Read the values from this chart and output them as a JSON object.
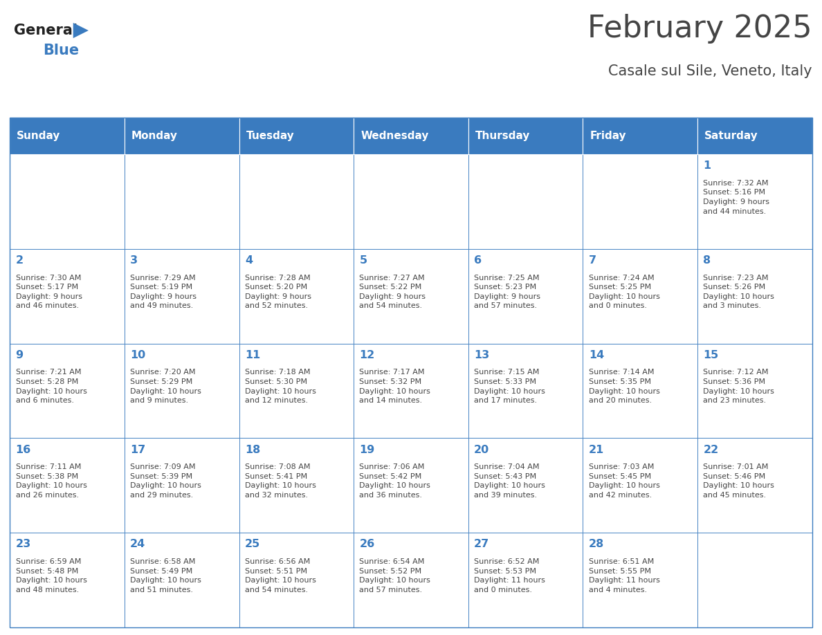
{
  "title": "February 2025",
  "subtitle": "Casale sul Sile, Veneto, Italy",
  "days_of_week": [
    "Sunday",
    "Monday",
    "Tuesday",
    "Wednesday",
    "Thursday",
    "Friday",
    "Saturday"
  ],
  "header_bg": "#3a7bbf",
  "header_text": "#ffffff",
  "cell_bg_white": "#ffffff",
  "cell_border": "#3a7bbf",
  "text_color": "#444444",
  "day_num_color": "#3a7bbf",
  "logo_general_color": "#222222",
  "logo_blue_color": "#3a7bbf",
  "weeks": [
    [
      {
        "day": null,
        "info": null
      },
      {
        "day": null,
        "info": null
      },
      {
        "day": null,
        "info": null
      },
      {
        "day": null,
        "info": null
      },
      {
        "day": null,
        "info": null
      },
      {
        "day": null,
        "info": null
      },
      {
        "day": 1,
        "info": "Sunrise: 7:32 AM\nSunset: 5:16 PM\nDaylight: 9 hours\nand 44 minutes."
      }
    ],
    [
      {
        "day": 2,
        "info": "Sunrise: 7:30 AM\nSunset: 5:17 PM\nDaylight: 9 hours\nand 46 minutes."
      },
      {
        "day": 3,
        "info": "Sunrise: 7:29 AM\nSunset: 5:19 PM\nDaylight: 9 hours\nand 49 minutes."
      },
      {
        "day": 4,
        "info": "Sunrise: 7:28 AM\nSunset: 5:20 PM\nDaylight: 9 hours\nand 52 minutes."
      },
      {
        "day": 5,
        "info": "Sunrise: 7:27 AM\nSunset: 5:22 PM\nDaylight: 9 hours\nand 54 minutes."
      },
      {
        "day": 6,
        "info": "Sunrise: 7:25 AM\nSunset: 5:23 PM\nDaylight: 9 hours\nand 57 minutes."
      },
      {
        "day": 7,
        "info": "Sunrise: 7:24 AM\nSunset: 5:25 PM\nDaylight: 10 hours\nand 0 minutes."
      },
      {
        "day": 8,
        "info": "Sunrise: 7:23 AM\nSunset: 5:26 PM\nDaylight: 10 hours\nand 3 minutes."
      }
    ],
    [
      {
        "day": 9,
        "info": "Sunrise: 7:21 AM\nSunset: 5:28 PM\nDaylight: 10 hours\nand 6 minutes."
      },
      {
        "day": 10,
        "info": "Sunrise: 7:20 AM\nSunset: 5:29 PM\nDaylight: 10 hours\nand 9 minutes."
      },
      {
        "day": 11,
        "info": "Sunrise: 7:18 AM\nSunset: 5:30 PM\nDaylight: 10 hours\nand 12 minutes."
      },
      {
        "day": 12,
        "info": "Sunrise: 7:17 AM\nSunset: 5:32 PM\nDaylight: 10 hours\nand 14 minutes."
      },
      {
        "day": 13,
        "info": "Sunrise: 7:15 AM\nSunset: 5:33 PM\nDaylight: 10 hours\nand 17 minutes."
      },
      {
        "day": 14,
        "info": "Sunrise: 7:14 AM\nSunset: 5:35 PM\nDaylight: 10 hours\nand 20 minutes."
      },
      {
        "day": 15,
        "info": "Sunrise: 7:12 AM\nSunset: 5:36 PM\nDaylight: 10 hours\nand 23 minutes."
      }
    ],
    [
      {
        "day": 16,
        "info": "Sunrise: 7:11 AM\nSunset: 5:38 PM\nDaylight: 10 hours\nand 26 minutes."
      },
      {
        "day": 17,
        "info": "Sunrise: 7:09 AM\nSunset: 5:39 PM\nDaylight: 10 hours\nand 29 minutes."
      },
      {
        "day": 18,
        "info": "Sunrise: 7:08 AM\nSunset: 5:41 PM\nDaylight: 10 hours\nand 32 minutes."
      },
      {
        "day": 19,
        "info": "Sunrise: 7:06 AM\nSunset: 5:42 PM\nDaylight: 10 hours\nand 36 minutes."
      },
      {
        "day": 20,
        "info": "Sunrise: 7:04 AM\nSunset: 5:43 PM\nDaylight: 10 hours\nand 39 minutes."
      },
      {
        "day": 21,
        "info": "Sunrise: 7:03 AM\nSunset: 5:45 PM\nDaylight: 10 hours\nand 42 minutes."
      },
      {
        "day": 22,
        "info": "Sunrise: 7:01 AM\nSunset: 5:46 PM\nDaylight: 10 hours\nand 45 minutes."
      }
    ],
    [
      {
        "day": 23,
        "info": "Sunrise: 6:59 AM\nSunset: 5:48 PM\nDaylight: 10 hours\nand 48 minutes."
      },
      {
        "day": 24,
        "info": "Sunrise: 6:58 AM\nSunset: 5:49 PM\nDaylight: 10 hours\nand 51 minutes."
      },
      {
        "day": 25,
        "info": "Sunrise: 6:56 AM\nSunset: 5:51 PM\nDaylight: 10 hours\nand 54 minutes."
      },
      {
        "day": 26,
        "info": "Sunrise: 6:54 AM\nSunset: 5:52 PM\nDaylight: 10 hours\nand 57 minutes."
      },
      {
        "day": 27,
        "info": "Sunrise: 6:52 AM\nSunset: 5:53 PM\nDaylight: 11 hours\nand 0 minutes."
      },
      {
        "day": 28,
        "info": "Sunrise: 6:51 AM\nSunset: 5:55 PM\nDaylight: 11 hours\nand 4 minutes."
      },
      {
        "day": null,
        "info": null
      }
    ]
  ]
}
